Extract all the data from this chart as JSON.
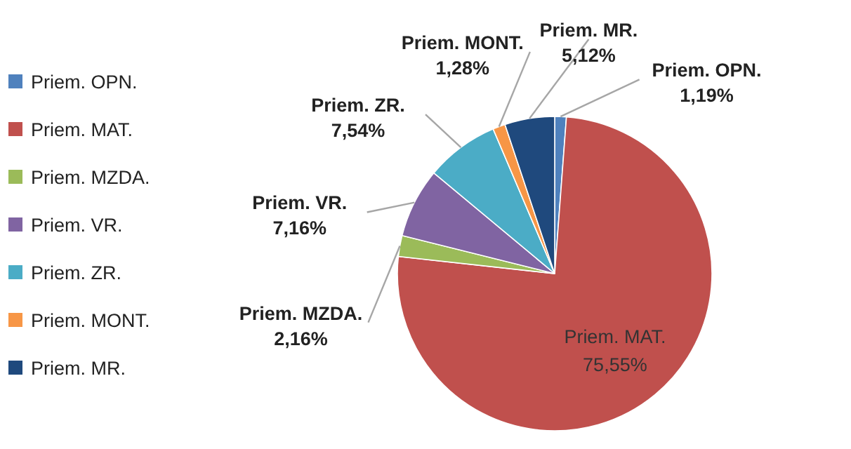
{
  "chart_data": {
    "type": "pie",
    "categories": [
      "Priem. OPN.",
      "Priem. MAT.",
      "Priem. MZDA.",
      "Priem. VR.",
      "Priem. ZR.",
      "Priem. MONT.",
      "Priem. MR."
    ],
    "values": [
      1.19,
      75.55,
      2.16,
      7.16,
      7.54,
      1.28,
      5.12
    ],
    "colors": [
      "#4f81bd",
      "#c0504d",
      "#9bbb59",
      "#8064a2",
      "#4bacc6",
      "#f79646",
      "#1f497d"
    ],
    "value_labels": [
      "1,19%",
      "75,55%",
      "2,16%",
      "7,16%",
      "7,54%",
      "1,28%",
      "5,12%"
    ],
    "legend": "left"
  }
}
